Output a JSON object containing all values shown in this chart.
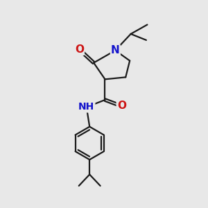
{
  "background_color": "#e8e8e8",
  "line_color": "#1a1a1a",
  "bond_width": 1.6,
  "font_size_atom": 10,
  "colors": {
    "C": "#1a1a1a",
    "N": "#1414cc",
    "O": "#cc1414",
    "H": "#1414cc"
  }
}
